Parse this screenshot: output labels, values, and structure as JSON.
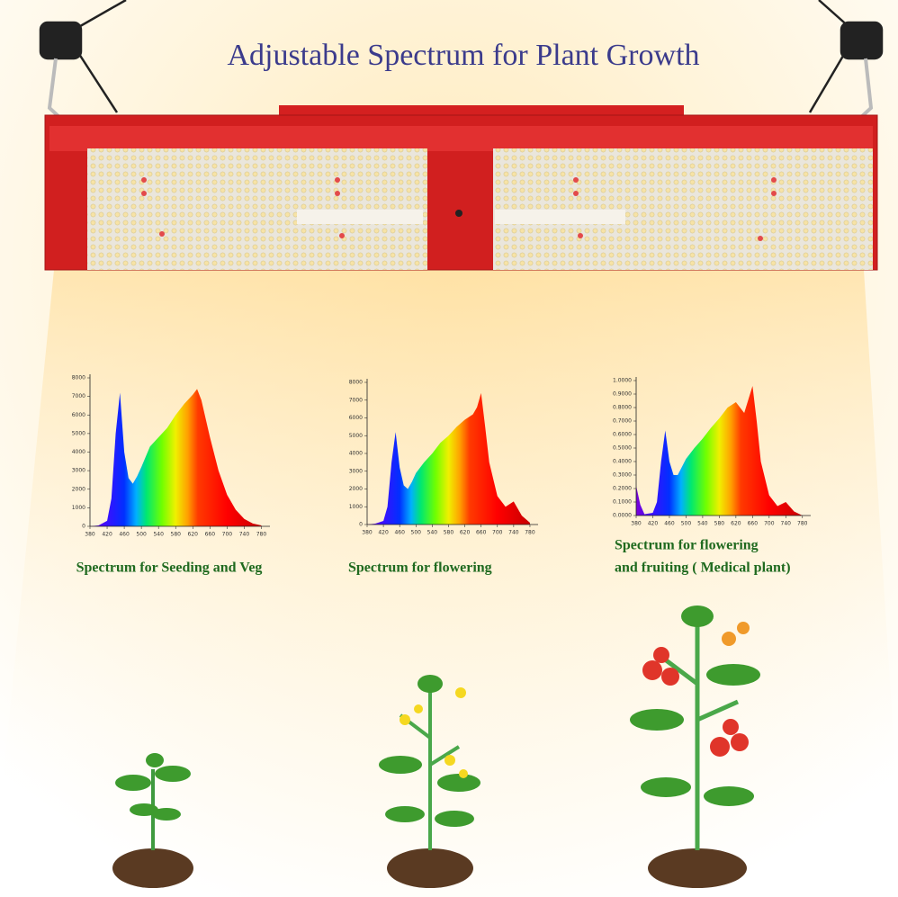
{
  "title": "Adjustable Spectrum for Plant Growth",
  "chart_data": [
    {
      "type": "area",
      "caption": [
        "Spectrum for Seeding and Veg"
      ],
      "x": [
        380,
        400,
        420,
        430,
        440,
        450,
        460,
        470,
        480,
        490,
        500,
        520,
        540,
        560,
        580,
        600,
        620,
        630,
        640,
        660,
        680,
        700,
        720,
        740,
        760,
        780
      ],
      "values": [
        0,
        50,
        300,
        1500,
        5000,
        7200,
        4000,
        2600,
        2300,
        2700,
        3200,
        4300,
        4800,
        5300,
        6000,
        6600,
        7100,
        7400,
        6800,
        4800,
        3000,
        1700,
        900,
        400,
        150,
        50
      ],
      "xlim": [
        380,
        800
      ],
      "ylim": [
        0,
        8000
      ],
      "xticks": [
        380,
        420,
        460,
        500,
        540,
        580,
        620,
        660,
        700,
        740,
        780
      ],
      "yticks": [
        0,
        1000,
        2000,
        3000,
        4000,
        5000,
        6000,
        7000,
        8000
      ]
    },
    {
      "type": "area",
      "caption": [
        "Spectrum for flowering"
      ],
      "x": [
        380,
        400,
        420,
        430,
        440,
        450,
        460,
        470,
        480,
        490,
        500,
        520,
        540,
        560,
        580,
        600,
        620,
        640,
        650,
        660,
        670,
        680,
        700,
        720,
        740,
        760,
        780
      ],
      "values": [
        0,
        50,
        200,
        1000,
        3500,
        5200,
        3200,
        2200,
        2000,
        2400,
        2900,
        3500,
        4000,
        4600,
        5000,
        5500,
        5900,
        6200,
        6600,
        7400,
        5500,
        3500,
        1600,
        1000,
        1300,
        500,
        100
      ],
      "xlim": [
        380,
        800
      ],
      "ylim": [
        0,
        8000
      ],
      "xticks": [
        380,
        420,
        460,
        500,
        540,
        580,
        620,
        660,
        700,
        740,
        780
      ],
      "yticks": [
        0,
        1000,
        2000,
        3000,
        4000,
        5000,
        6000,
        7000,
        8000
      ]
    },
    {
      "type": "area",
      "caption": [
        "Spectrum for flowering",
        "and fruiting ( Medical plant)"
      ],
      "x": [
        380,
        390,
        400,
        420,
        430,
        440,
        450,
        460,
        470,
        480,
        500,
        520,
        540,
        560,
        580,
        600,
        620,
        640,
        660,
        670,
        680,
        700,
        720,
        740,
        760,
        780
      ],
      "values": [
        0.22,
        0.08,
        0.01,
        0.02,
        0.1,
        0.4,
        0.63,
        0.4,
        0.3,
        0.3,
        0.42,
        0.5,
        0.57,
        0.65,
        0.72,
        0.8,
        0.84,
        0.76,
        0.96,
        0.7,
        0.4,
        0.15,
        0.07,
        0.1,
        0.03,
        0
      ],
      "xlim": [
        380,
        800
      ],
      "ylim": [
        0,
        1
      ],
      "xticks": [
        380,
        420,
        460,
        500,
        540,
        580,
        620,
        660,
        700,
        740,
        780
      ],
      "yticks": [
        {
          "value": 0,
          "label": "0.0000"
        },
        {
          "value": 0.1,
          "label": "0.1000"
        },
        {
          "value": 0.2,
          "label": "0.2000"
        },
        {
          "value": 0.3,
          "label": "0.3000"
        },
        {
          "value": 0.4,
          "label": "0.4000"
        },
        {
          "value": 0.5,
          "label": "0.5000"
        },
        {
          "value": 0.6,
          "label": "0.6000"
        },
        {
          "value": 0.7,
          "label": "0.7000"
        },
        {
          "value": 0.8,
          "label": "0.8000"
        },
        {
          "value": 0.9,
          "label": "0.9000"
        },
        {
          "value": 1,
          "label": "1.0000"
        }
      ]
    }
  ]
}
